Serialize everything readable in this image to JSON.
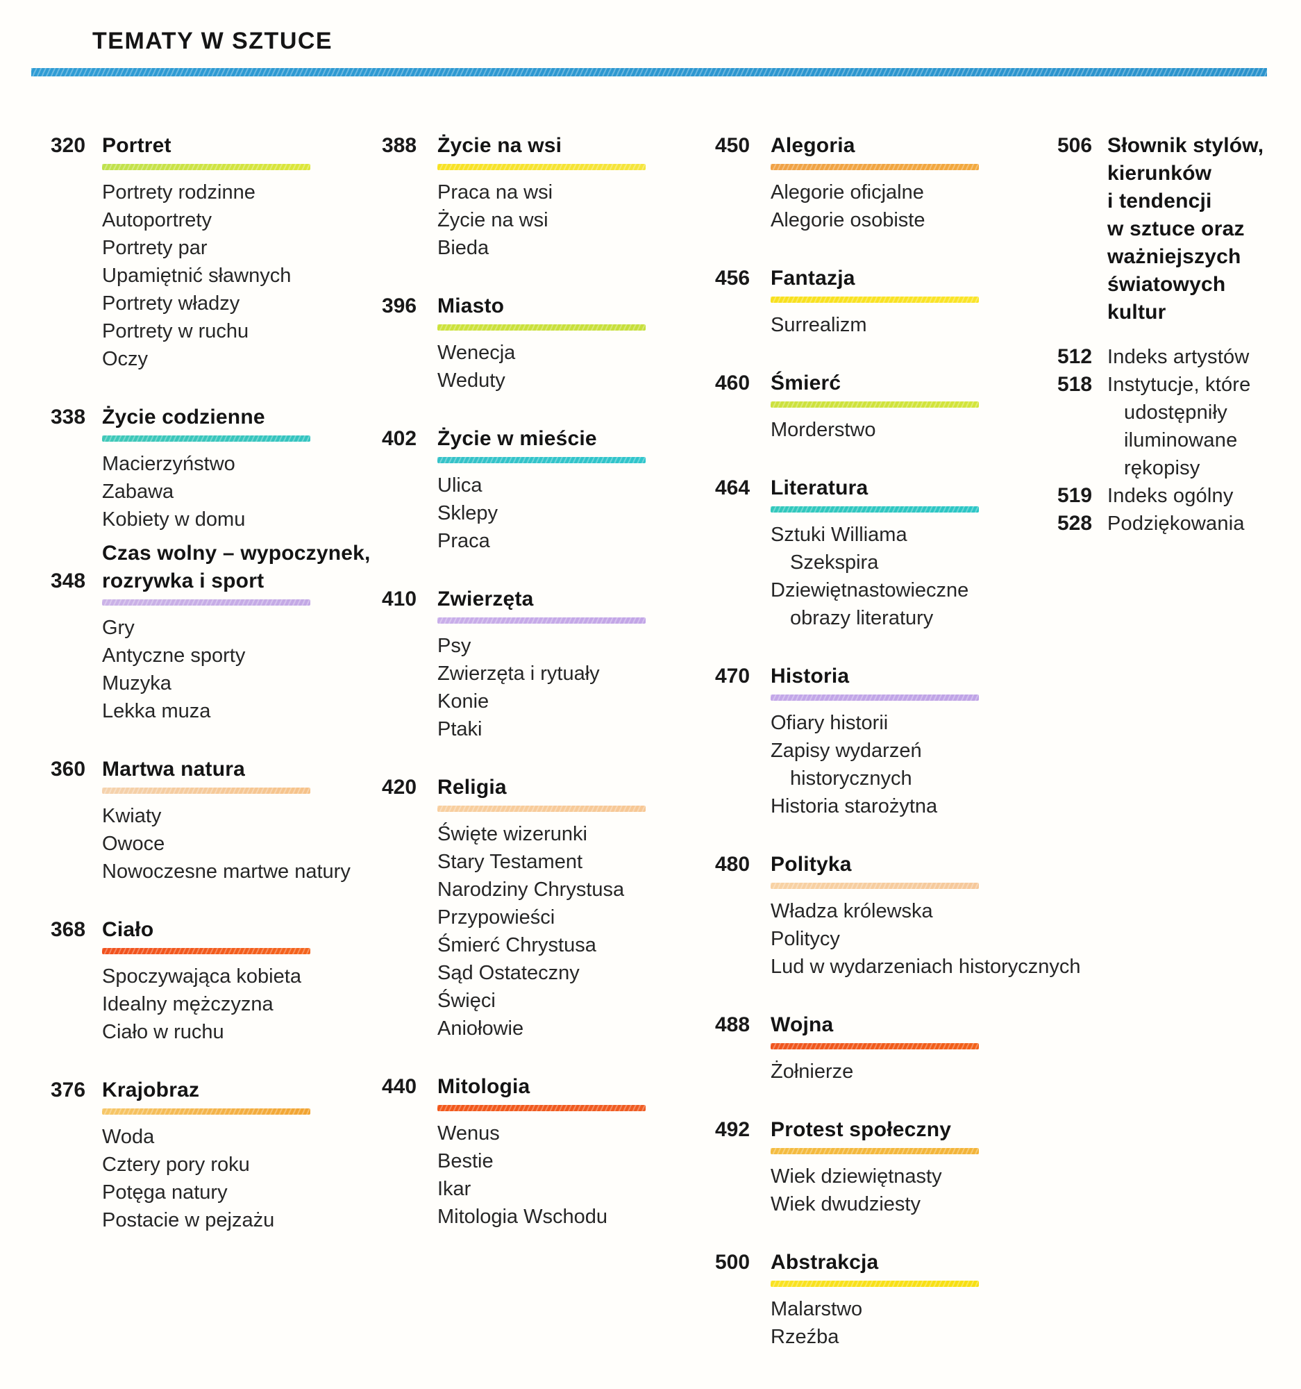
{
  "header": {
    "title": "TEMATY W SZTUCE",
    "rule_color_left": "#2f9cd4",
    "rule_color_right": "#2b93cc"
  },
  "columns": [
    {
      "sections": [
        {
          "number": "320",
          "title": "Portret",
          "bar": [
            "#bfe14d",
            "#dde637"
          ],
          "items": [
            "Portrety rodzinne",
            "Autoportrety",
            "Portrety par",
            "Upamiętnić sławnych",
            "Portrety władzy",
            "Portrety w ruchu",
            "Oczy"
          ]
        },
        {
          "number": "338",
          "title": "Życie codzienne",
          "bar": [
            "#3fc8b8",
            "#34c4c0"
          ],
          "items": [
            "Macierzyństwo",
            "Zabawa",
            "Kobiety w domu"
          ]
        },
        {
          "number": "348",
          "title": "Czas wolny – wypoczynek,\nrozrywka i sport",
          "tight": true,
          "align": "last",
          "bar": [
            "#cbb2e7",
            "#c3a8e5"
          ],
          "items": [
            "Gry",
            "Antyczne sporty",
            "Muzyka",
            "Lekka muza"
          ]
        },
        {
          "number": "360",
          "title": "Martwa natura",
          "bar": [
            "#f5d2ad",
            "#f6c288"
          ],
          "items": [
            "Kwiaty",
            "Owoce",
            "Nowoczesne martwe natury"
          ]
        },
        {
          "number": "368",
          "title": "Ciało",
          "bar": [
            "#f1511d",
            "#f4641c"
          ],
          "items": [
            "Spoczywająca kobieta",
            "Idealny mężczyzna",
            "Ciało w ruchu"
          ]
        },
        {
          "number": "376",
          "title": "Krajobraz",
          "bar": [
            "#f6c768",
            "#f2a32f"
          ],
          "items": [
            "Woda",
            "Cztery pory roku",
            "Potęga natury",
            "Postacie w pejzażu"
          ]
        }
      ]
    },
    {
      "sections": [
        {
          "number": "388",
          "title": "Życie na wsi",
          "bar": [
            "#f8e222",
            "#f5e53c"
          ],
          "items": [
            "Praca na wsi",
            "Życie na wsi",
            "Bieda"
          ]
        },
        {
          "number": "396",
          "title": "Miasto",
          "bar": [
            "#cde23b",
            "#c6df3b"
          ],
          "items": [
            "Wenecja",
            "Weduty"
          ]
        },
        {
          "number": "402",
          "title": "Życie w mieście",
          "bar": [
            "#35c2c8",
            "#2fc5cb"
          ],
          "items": [
            "Ulica",
            "Sklepy",
            "Praca"
          ]
        },
        {
          "number": "410",
          "title": "Zwierzęta",
          "bar": [
            "#c9aee9",
            "#c2a5e6"
          ],
          "items": [
            "Psy",
            "Zwierzęta i rytuały",
            "Konie",
            "Ptaki"
          ]
        },
        {
          "number": "420",
          "title": "Religia",
          "bar": [
            "#f8cf9f",
            "#f7c794"
          ],
          "items": [
            "Święte wizerunki",
            "Stary Testament",
            "Narodziny Chrystusa",
            "Przypowieści",
            "Śmierć Chrystusa",
            "Sąd Ostateczny",
            "Święci",
            "Aniołowie"
          ]
        },
        {
          "number": "440",
          "title": "Mitologia",
          "bar": [
            "#f2581a",
            "#ef5c22"
          ],
          "items": [
            "Wenus",
            "Bestie",
            "Ikar",
            "Mitologia Wschodu"
          ]
        }
      ]
    },
    {
      "sections": [
        {
          "number": "450",
          "title": "Alegoria",
          "bar": [
            "#f0a246",
            "#f2a83c"
          ],
          "items": [
            "Alegorie oficjalne",
            "Alegorie osobiste"
          ]
        },
        {
          "number": "456",
          "title": "Fantazja",
          "bar": [
            "#f8e01c",
            "#fae428"
          ],
          "items": [
            "Surrealizm"
          ]
        },
        {
          "number": "460",
          "title": "Śmierć",
          "bar": [
            "#cce13e",
            "#d3e53a"
          ],
          "items": [
            "Morderstwo"
          ]
        },
        {
          "number": "464",
          "title": "Literatura",
          "bar": [
            "#32c8bc",
            "#2cc6c6"
          ],
          "items": [
            "Sztuki Williama\nSzekspira",
            "Dziewiętnastowieczne\nobrazy literatury"
          ]
        },
        {
          "number": "470",
          "title": "Historia",
          "bar": [
            "#c3a7e8",
            "#bfa3e6"
          ],
          "items": [
            "Ofiary historii",
            "Zapisy wydarzeń\nhistorycznych",
            "Historia starożytna"
          ]
        },
        {
          "number": "480",
          "title": "Polityka",
          "bar": [
            "#f8d2a4",
            "#f6c89a"
          ],
          "items": [
            "Władza królewska",
            "Politycy",
            "Lud w wydarzeniach historycznych"
          ]
        },
        {
          "number": "488",
          "title": "Wojna",
          "bar": [
            "#f0551e",
            "#f26018"
          ],
          "items": [
            "Żołnierze"
          ]
        },
        {
          "number": "492",
          "title": "Protest społeczny",
          "bar": [
            "#f4bc40",
            "#f3b438"
          ],
          "items": [
            "Wiek dziewiętnasty",
            "Wiek dwudziesty"
          ]
        },
        {
          "number": "500",
          "title": "Abstrakcja",
          "bar": [
            "#f9e222",
            "#f7df10"
          ],
          "items": [
            "Malarstwo",
            "Rzeźba"
          ]
        }
      ]
    },
    {
      "sections": [
        {
          "number": "506",
          "title": "Słownik stylów,\nkierunków\ni tendencji\nw sztuce oraz\nważniejszych\nświatowych\nkultur",
          "style": "lead",
          "items": []
        },
        {
          "number": "512",
          "title": "Indeks artystów",
          "style": "plain",
          "items": []
        },
        {
          "number": "518",
          "title": "Instytucje, które\nudostępniły\niluminowane\nrękopisy",
          "style": "plain",
          "items": []
        },
        {
          "number": "519",
          "title": "Indeks ogólny",
          "style": "plain",
          "items": []
        },
        {
          "number": "528",
          "title": "Podziękowania",
          "style": "plain",
          "items": []
        }
      ]
    }
  ]
}
